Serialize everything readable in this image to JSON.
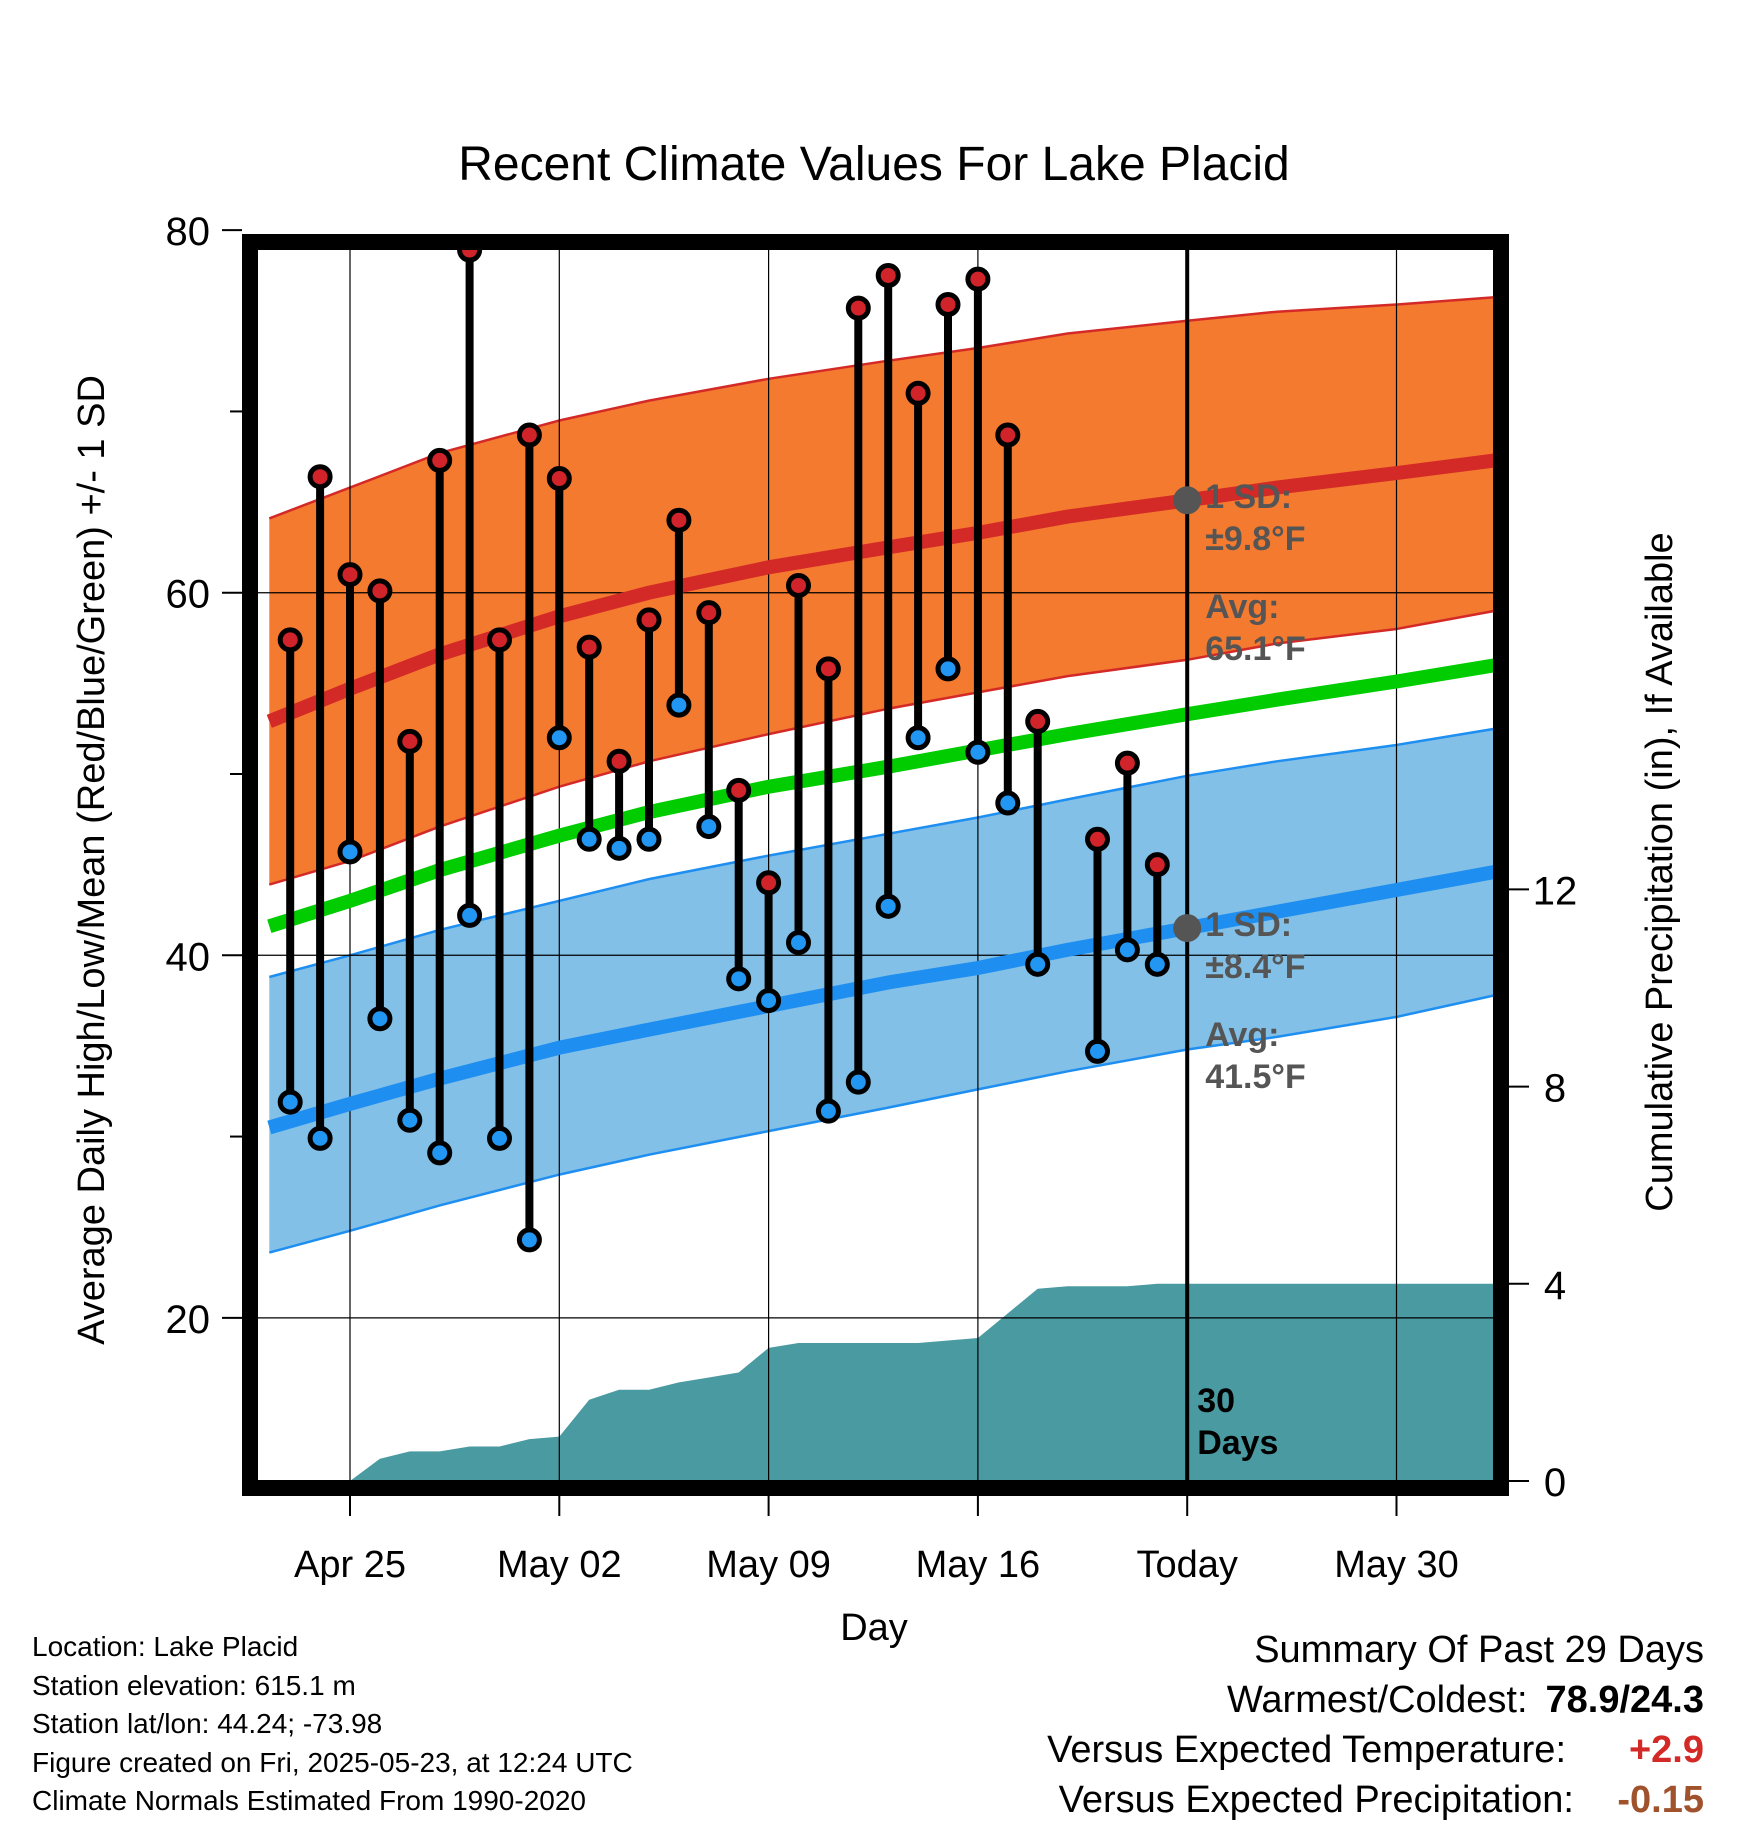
{
  "chart_data": {
    "type": "line",
    "title": "Recent Climate Values For Lake Placid",
    "xlabel": "Day",
    "ylabel": "Average Daily High/Low/Mean (Red/Blue/Green) +/- 1 SD",
    "y2label": "Cumulative Precipitation (in), If Available",
    "ylim": [
      16.7,
      85
    ],
    "y2lim": [
      0,
      21
    ],
    "xlim": [
      -3.2,
      38.5
    ],
    "x_tick_labels": [
      "Apr 25",
      "May 02",
      "May 09",
      "May 16",
      "Today",
      "May 30"
    ],
    "x_tick_positions": [
      0,
      7,
      14,
      21,
      28,
      35
    ],
    "y_ticks": [
      20,
      40,
      60,
      80
    ],
    "y_minor_ticks": [
      30,
      50,
      70
    ],
    "y2_ticks": [
      0,
      4,
      8,
      12
    ],
    "grid": true,
    "today_x": 28,
    "today_label_line1": "30",
    "today_label_line2": "Days",
    "daily_obs": [
      {
        "x": -2,
        "high": 57.4,
        "low": 31.9
      },
      {
        "x": -1,
        "high": 66.4,
        "low": 29.9
      },
      {
        "x": 0,
        "high": 61.0,
        "low": 45.7
      },
      {
        "x": 1,
        "high": 60.1,
        "low": 36.5
      },
      {
        "x": 2,
        "high": 51.8,
        "low": 30.9
      },
      {
        "x": 3,
        "high": 67.3,
        "low": 29.1
      },
      {
        "x": 4,
        "high": 78.9,
        "low": 42.2
      },
      {
        "x": 5,
        "high": 57.4,
        "low": 29.9
      },
      {
        "x": 6,
        "high": 68.7,
        "low": 24.3
      },
      {
        "x": 7,
        "high": 66.3,
        "low": 52.0
      },
      {
        "x": 8,
        "high": 57.0,
        "low": 46.4
      },
      {
        "x": 9,
        "high": 50.7,
        "low": 45.9
      },
      {
        "x": 10,
        "high": 58.5,
        "low": 46.4
      },
      {
        "x": 11,
        "high": 64.0,
        "low": 53.8
      },
      {
        "x": 12,
        "high": 58.9,
        "low": 47.1
      },
      {
        "x": 13,
        "high": 49.1,
        "low": 38.7
      },
      {
        "x": 14,
        "high": 44.0,
        "low": 37.5
      },
      {
        "x": 15,
        "high": 60.4,
        "low": 40.7
      },
      {
        "x": 16,
        "high": 55.8,
        "low": 31.4
      },
      {
        "x": 17,
        "high": 75.7,
        "low": 33.0
      },
      {
        "x": 18,
        "high": 77.5,
        "low": 42.7
      },
      {
        "x": 19,
        "high": 71.0,
        "low": 52.0
      },
      {
        "x": 20,
        "high": 75.9,
        "low": 55.8
      },
      {
        "x": 21,
        "high": 77.3,
        "low": 51.2
      },
      {
        "x": 22,
        "high": 68.7,
        "low": 48.4
      },
      {
        "x": 23,
        "high": 52.9,
        "low": 39.5
      },
      {
        "x": 25,
        "high": 46.4,
        "low": 34.7
      },
      {
        "x": 26,
        "high": 50.6,
        "low": 40.3
      },
      {
        "x": 27,
        "high": 45.0,
        "low": 39.5
      }
    ],
    "normal_high": {
      "x": [
        -2.7,
        0,
        3,
        7,
        10,
        14,
        18,
        21,
        24,
        28,
        31,
        35,
        38.3
      ],
      "mean": [
        52.9,
        54.7,
        56.6,
        58.7,
        60.0,
        61.4,
        62.5,
        63.3,
        64.2,
        65.1,
        65.8,
        66.6,
        67.3
      ],
      "upper": [
        64.1,
        65.8,
        67.7,
        69.5,
        70.6,
        71.8,
        72.8,
        73.5,
        74.3,
        75.0,
        75.5,
        75.9,
        76.3
      ],
      "lower": [
        43.9,
        45.2,
        47.1,
        49.3,
        50.7,
        52.2,
        53.6,
        54.5,
        55.4,
        56.3,
        57.2,
        58.0,
        59.0
      ]
    },
    "normal_mean": {
      "x": [
        -2.7,
        0,
        3,
        7,
        10,
        14,
        18,
        21,
        24,
        28,
        31,
        35,
        38.3
      ],
      "values": [
        41.6,
        43.0,
        44.7,
        46.6,
        47.9,
        49.3,
        50.4,
        51.3,
        52.2,
        53.3,
        54.1,
        55.1,
        56.0
      ]
    },
    "normal_low": {
      "x": [
        -2.7,
        0,
        3,
        7,
        10,
        14,
        18,
        21,
        24,
        28,
        31,
        35,
        38.3
      ],
      "mean": [
        30.5,
        31.8,
        33.2,
        34.9,
        35.9,
        37.2,
        38.5,
        39.3,
        40.3,
        41.5,
        42.4,
        43.6,
        44.6
      ],
      "upper": [
        38.8,
        40.0,
        41.4,
        43.0,
        44.2,
        45.5,
        46.7,
        47.6,
        48.6,
        49.9,
        50.7,
        51.6,
        52.5
      ],
      "lower": [
        23.6,
        24.8,
        26.2,
        27.9,
        29.0,
        30.3,
        31.6,
        32.6,
        33.6,
        34.8,
        35.5,
        36.6,
        37.8
      ]
    },
    "cumulative_precip": {
      "x": [
        -3.2,
        0,
        1,
        2,
        3,
        4,
        5,
        6,
        7,
        8,
        9,
        10,
        11,
        12,
        13,
        14,
        15,
        16,
        17,
        18,
        19,
        20,
        21,
        22,
        23,
        24,
        25,
        26,
        27,
        28,
        38.5
      ],
      "values": [
        0.0,
        0.0,
        0.45,
        0.6,
        0.6,
        0.7,
        0.7,
        0.85,
        0.9,
        1.65,
        1.85,
        1.85,
        2.0,
        2.1,
        2.2,
        2.7,
        2.8,
        2.8,
        2.8,
        2.8,
        2.8,
        2.85,
        2.9,
        3.4,
        3.9,
        3.95,
        3.95,
        3.95,
        4.0,
        4.0,
        4.0
      ]
    },
    "high_annotation": {
      "sd_label": "1 SD:",
      "sd_value": "±9.8°F",
      "avg_label": "Avg:",
      "avg_value": "65.1°F",
      "avg": 65.1
    },
    "low_annotation": {
      "sd_label": "1 SD:",
      "sd_value": "±8.4°F",
      "avg_label": "Avg:",
      "avg_value": "41.5°F",
      "avg": 41.5
    }
  },
  "colors": {
    "high_band": "#f47a30",
    "high_line": "#d42a27",
    "low_band": "#82c0e8",
    "low_line": "#1e8ff0",
    "mean_line": "#00cc00",
    "precip": "#4a9aa2",
    "high_dot": "#d0232a",
    "low_dot": "#2196f3",
    "annotation": "#555555",
    "temp_anomaly": "#d42a27",
    "precip_anomaly": "#a0522d"
  },
  "info": {
    "location": "Location: Lake Placid",
    "elevation": "Station elevation: 615.1 m",
    "latlon": "Station lat/lon: 44.24; -73.98",
    "created": "Figure created on Fri, 2025-05-23, at 12:24 UTC",
    "normals": "Climate Normals Estimated From 1990-2020"
  },
  "summary": {
    "title": "Summary Of Past 29 Days",
    "warm_cold_label": "Warmest/Coldest:",
    "warm_cold_value": "78.9/24.3",
    "temp_label": "Versus Expected Temperature:",
    "temp_value": "+2.9",
    "precip_label": "Versus Expected Precipitation:",
    "precip_value": "-0.15"
  }
}
